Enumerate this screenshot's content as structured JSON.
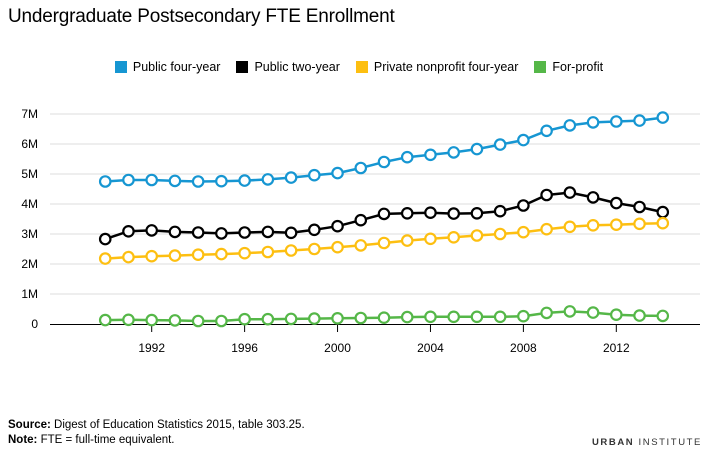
{
  "title": "Undergraduate Postsecondary FTE Enrollment",
  "source_label": "Source:",
  "source_text": "Digest of Education Statistics 2015, table 303.25.",
  "note_label": "Note:",
  "note_text": "FTE = full-time equivalent.",
  "brand_bold": "URBAN",
  "brand_rest": "INSTITUTE",
  "chart_data": {
    "type": "line",
    "legend_position": "top",
    "grid": true,
    "ylim": [
      0,
      7000000
    ],
    "y_ticks": [
      0,
      1000000,
      2000000,
      3000000,
      4000000,
      5000000,
      6000000,
      7000000
    ],
    "y_tick_labels": [
      "0",
      "1M",
      "2M",
      "3M",
      "4M",
      "5M",
      "6M",
      "7M"
    ],
    "x_ticks": [
      1992,
      1996,
      2000,
      2004,
      2008,
      2012
    ],
    "x": [
      1990,
      1991,
      1992,
      1993,
      1994,
      1995,
      1996,
      1997,
      1998,
      1999,
      2000,
      2001,
      2002,
      2003,
      2004,
      2005,
      2006,
      2007,
      2008,
      2009,
      2010,
      2011,
      2012,
      2013,
      2014
    ],
    "series": [
      {
        "name": "Public four-year",
        "color": "#1696d2",
        "values": [
          4750000,
          4800000,
          4800000,
          4770000,
          4750000,
          4760000,
          4780000,
          4820000,
          4880000,
          4960000,
          5030000,
          5200000,
          5400000,
          5560000,
          5640000,
          5720000,
          5830000,
          5980000,
          6130000,
          6440000,
          6620000,
          6720000,
          6750000,
          6780000,
          6880000
        ]
      },
      {
        "name": "Public two-year",
        "color": "#000000",
        "values": [
          2830000,
          3090000,
          3120000,
          3070000,
          3050000,
          3020000,
          3050000,
          3070000,
          3040000,
          3140000,
          3260000,
          3460000,
          3670000,
          3690000,
          3710000,
          3680000,
          3690000,
          3760000,
          3950000,
          4300000,
          4380000,
          4220000,
          4030000,
          3900000,
          3730000
        ]
      },
      {
        "name": "Private nonprofit four-year",
        "color": "#fdbf11",
        "values": [
          2180000,
          2230000,
          2260000,
          2280000,
          2310000,
          2330000,
          2360000,
          2400000,
          2450000,
          2500000,
          2560000,
          2620000,
          2700000,
          2780000,
          2840000,
          2890000,
          2950000,
          3000000,
          3060000,
          3160000,
          3240000,
          3290000,
          3310000,
          3340000,
          3360000
        ]
      },
      {
        "name": "For-profit",
        "color": "#55b748",
        "values": [
          130000,
          140000,
          130000,
          120000,
          100000,
          100000,
          160000,
          160000,
          170000,
          180000,
          190000,
          200000,
          210000,
          230000,
          240000,
          240000,
          240000,
          240000,
          260000,
          370000,
          420000,
          380000,
          310000,
          280000,
          270000
        ]
      }
    ]
  }
}
